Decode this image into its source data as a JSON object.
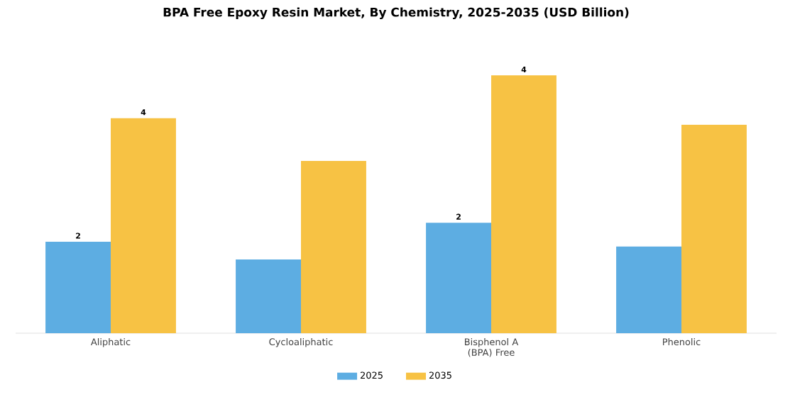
{
  "chart_data": {
    "type": "bar",
    "title": "BPA Free Epoxy Resin Market, By Chemistry, 2025-2035 (USD Billion)",
    "categories": [
      "Aliphatic",
      "Cycloaliphatic",
      "Bisphenol A (BPA) Free",
      "Phenolic"
    ],
    "legend": "bottom",
    "series": [
      {
        "name": "2025",
        "color": "#5dade2",
        "values": [
          1.54,
          1.24,
          1.86,
          1.46
        ],
        "value_labels": [
          "2",
          null,
          "2",
          null
        ]
      },
      {
        "name": "2035",
        "color": "#f7c244",
        "values": [
          3.62,
          2.9,
          4.34,
          3.51
        ],
        "value_labels": [
          "4",
          null,
          "4",
          null
        ]
      }
    ]
  }
}
